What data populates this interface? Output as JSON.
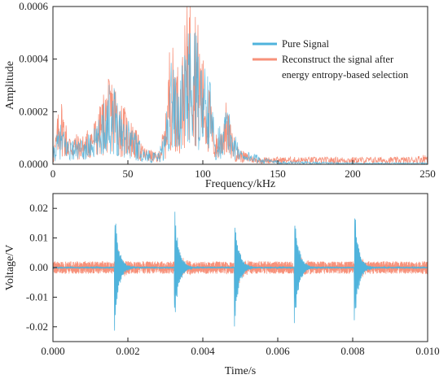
{
  "colors": {
    "pure_signal": "#4fb3dc",
    "reconstructed": "#f7917a",
    "axis": "#222222"
  },
  "chart_data": [
    {
      "type": "line",
      "xlabel": "Frequency/kHz",
      "ylabel": "Amplitude",
      "xlim": [
        0,
        250
      ],
      "ylim": [
        0,
        0.0006
      ],
      "x_ticks": [
        0,
        50,
        100,
        150,
        200,
        250
      ],
      "y_ticks": [
        0,
        0.0002,
        0.0004,
        0.0006
      ],
      "x_tick_labels": [
        "0",
        "50",
        "100",
        "150",
        "200",
        "250"
      ],
      "y_tick_labels": [
        "0.0000",
        "0.0002",
        "0.0004",
        "0.0006"
      ],
      "legend": {
        "position": "top-right",
        "entries": [
          "Pure Signal",
          "Reconstruct the signal after",
          "energy entropy-based selection"
        ]
      },
      "series": [
        {
          "name": "Pure Signal",
          "color": "#4fb3dc",
          "x": [
            0,
            5,
            10,
            20,
            30,
            35,
            40,
            45,
            50,
            55,
            60,
            65,
            70,
            75,
            78,
            82,
            85,
            88,
            92,
            95,
            98,
            102,
            105,
            108,
            112,
            115,
            118,
            122,
            125,
            130,
            135,
            140,
            150,
            200,
            250
          ],
          "y": [
            5e-05,
            0.00012,
            8e-05,
            7e-05,
            0.00012,
            0.00022,
            0.00025,
            0.00018,
            0.00015,
            0.0001,
            5e-05,
            4e-05,
            3e-05,
            0.0001,
            0.00032,
            0.0003,
            0.00025,
            0.00037,
            0.0004,
            0.0004,
            0.0003,
            0.00028,
            0.00025,
            0.0001,
            0.00012,
            0.00018,
            0.00015,
            8e-05,
            5e-05,
            4e-05,
            3e-05,
            2e-05,
            1e-05,
            5e-06,
            5e-06
          ]
        },
        {
          "name": "Reconstruct the signal after energy entropy-based selection",
          "color": "#f7917a",
          "x": [
            0,
            5,
            10,
            20,
            30,
            35,
            40,
            45,
            50,
            55,
            60,
            65,
            70,
            75,
            78,
            82,
            85,
            88,
            92,
            95,
            98,
            102,
            105,
            108,
            112,
            115,
            118,
            122,
            125,
            130,
            135,
            140,
            150,
            160,
            180,
            200,
            220,
            240,
            250
          ],
          "y": [
            2e-05,
            0.0002,
            9e-05,
            8e-05,
            0.00014,
            0.00022,
            0.00025,
            0.00018,
            0.00014,
            0.0001,
            5e-05,
            4e-05,
            3e-05,
            0.00012,
            0.00035,
            0.0003,
            0.00025,
            0.00038,
            0.00055,
            0.00045,
            0.00035,
            0.00025,
            0.0002,
            8e-05,
            0.0001,
            0.00018,
            0.00012,
            6e-05,
            4e-05,
            3e-05,
            2e-05,
            2e-05,
            2e-05,
            2e-05,
            2e-05,
            2e-05,
            2e-05,
            2e-05,
            3e-05
          ]
        }
      ]
    },
    {
      "type": "line",
      "xlabel": "Time/s",
      "ylabel": "Voltage/V",
      "xlim": [
        0,
        0.01
      ],
      "ylim": [
        -0.025,
        0.025
      ],
      "x_ticks": [
        0,
        0.002,
        0.004,
        0.006,
        0.008,
        0.01
      ],
      "y_ticks": [
        -0.02,
        -0.01,
        0,
        0.01,
        0.02
      ],
      "x_tick_labels": [
        "0.000",
        "0.002",
        "0.004",
        "0.006",
        "0.008",
        "0.010"
      ],
      "y_tick_labels": [
        "-0.02",
        "-0.01",
        "0.00",
        "0.01",
        "0.02"
      ],
      "pulse_times": [
        0.00165,
        0.00325,
        0.00485,
        0.00645,
        0.00805
      ],
      "series": [
        {
          "name": "Pure Signal",
          "color": "#4fb3dc",
          "description": "damped oscillation bursts at pulse times, peak amplitude about 0.021"
        },
        {
          "name": "Reconstruct the signal after energy entropy-based selection",
          "color": "#f7917a",
          "description": "noise band about ±0.002 plus bursts at pulse times"
        }
      ]
    }
  ]
}
